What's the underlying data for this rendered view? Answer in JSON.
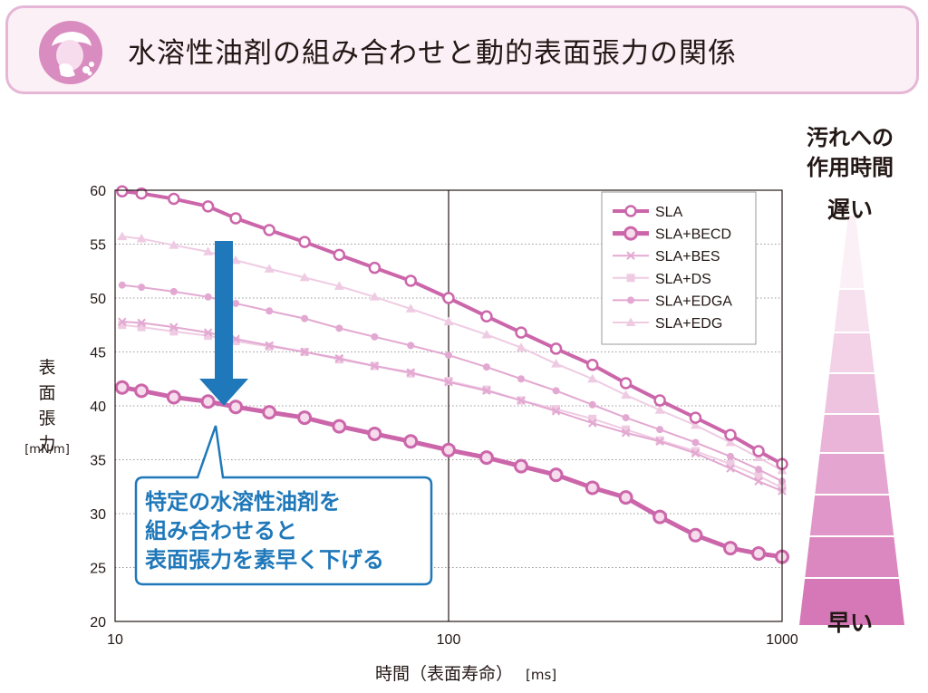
{
  "title": "水溶性油剤の組み合わせと動的表面張力の関係",
  "side_scale": {
    "heading_line1": "汚れへの",
    "heading_line2": "作用時間",
    "slow_label": "遅い",
    "fast_label": "早い"
  },
  "callout": {
    "line1": "特定の水溶性油剤を",
    "line2": "組み合わせると",
    "line3": "表面張力を素早く下げる"
  },
  "colors": {
    "title_border": "#e5b6d6",
    "title_fill": "#fcf0f7",
    "callout_blue": "#1f78b9",
    "series_main": "#cc66aa",
    "series_light": "#e3a8d1",
    "series_pale": "#efcbe3"
  },
  "chart_data": {
    "type": "line",
    "x_scale": "log",
    "xlim": [
      10,
      1000
    ],
    "ylim": [
      20,
      60
    ],
    "x_ticks": [
      "10",
      "100",
      "1000"
    ],
    "y_ticks": [
      "20",
      "25",
      "30",
      "35",
      "40",
      "45",
      "50",
      "55",
      "60"
    ],
    "xlabel": "時間（表面寿命）",
    "xlabel_unit": "[ms]",
    "ylabel_lines": [
      "表",
      "面",
      "張",
      "力"
    ],
    "ylabel_unit": "[mN/m]",
    "legend_position": "top-right",
    "grid": "horizontal dotted, vertical solid at 100",
    "x": [
      10.5,
      12,
      15,
      19,
      23,
      29,
      37,
      47,
      60,
      77,
      100,
      130,
      165,
      210,
      270,
      340,
      430,
      550,
      700,
      850,
      1000
    ],
    "series": [
      {
        "name": "SLA",
        "color": "#cc66aa",
        "marker": "circle-open",
        "width": 4,
        "values": [
          59.9,
          59.7,
          59.2,
          58.5,
          57.4,
          56.3,
          55.2,
          54.0,
          52.8,
          51.6,
          50.0,
          48.3,
          46.8,
          45.3,
          43.8,
          42.1,
          40.5,
          38.9,
          37.3,
          35.8,
          34.6
        ]
      },
      {
        "name": "SLA+BECD",
        "color": "#cc66aa",
        "marker": "circle-open-large",
        "width": 5,
        "values": [
          41.7,
          41.4,
          40.8,
          40.4,
          39.9,
          39.4,
          38.9,
          38.1,
          37.4,
          36.7,
          35.9,
          35.2,
          34.4,
          33.6,
          32.4,
          31.5,
          29.7,
          28.0,
          26.8,
          26.3,
          26.0
        ]
      },
      {
        "name": "SLA+BES",
        "color": "#e3a8d1",
        "marker": "cross",
        "width": 2,
        "values": [
          47.8,
          47.7,
          47.3,
          46.8,
          46.2,
          45.6,
          45.0,
          44.4,
          43.7,
          43.1,
          42.2,
          41.4,
          40.5,
          39.5,
          38.4,
          37.5,
          36.7,
          35.6,
          34.2,
          33.0,
          32.1
        ]
      },
      {
        "name": "SLA+DS",
        "color": "#efcbe3",
        "marker": "square",
        "width": 2,
        "values": [
          47.5,
          47.3,
          46.9,
          46.5,
          46.0,
          45.5,
          45.0,
          44.3,
          43.7,
          43.0,
          42.3,
          41.5,
          40.5,
          39.7,
          38.8,
          37.8,
          36.8,
          35.8,
          34.6,
          33.5,
          32.4
        ]
      },
      {
        "name": "SLA+EDGA",
        "color": "#e3a8d1",
        "marker": "dot",
        "width": 2,
        "values": [
          51.2,
          51.0,
          50.6,
          50.1,
          49.5,
          48.8,
          48.1,
          47.2,
          46.4,
          45.6,
          44.7,
          43.6,
          42.5,
          41.4,
          40.1,
          38.9,
          37.8,
          36.6,
          35.3,
          34.1,
          33.0
        ]
      },
      {
        "name": "SLA+EDG",
        "color": "#efcbe3",
        "marker": "triangle",
        "width": 2,
        "values": [
          55.7,
          55.5,
          54.9,
          54.3,
          53.5,
          52.7,
          51.9,
          51.1,
          50.1,
          49.0,
          47.8,
          46.6,
          45.4,
          43.9,
          42.5,
          41.0,
          39.6,
          38.2,
          36.6,
          35.2,
          34.0
        ]
      }
    ]
  }
}
